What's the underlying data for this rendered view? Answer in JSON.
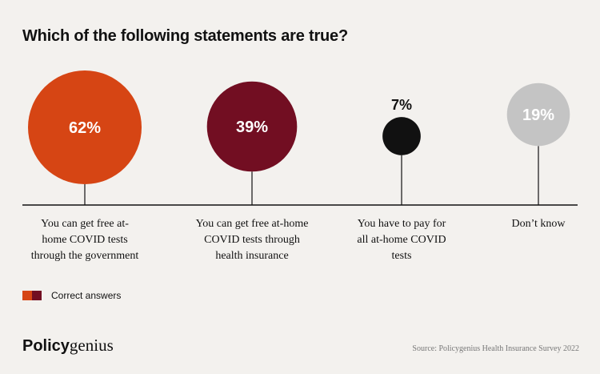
{
  "title": "Which of the following statements are true?",
  "legend": {
    "label": "Correct answers",
    "colors": [
      "#d64514",
      "#720e22"
    ]
  },
  "brand": {
    "bold": "Policy",
    "light": "genius"
  },
  "source": "Source: Policygenius Health Insurance Survey 2022",
  "chart_data": {
    "type": "bubble",
    "unit": "%",
    "categories": [
      "You can get free at-home COVID tests through the government",
      "You can get free at-home COVID tests through health insurance",
      "You have to pay for all at-home COVID tests",
      "Don't know"
    ],
    "category_lines": [
      [
        "You can get free at-",
        "home COVID tests",
        "through the government"
      ],
      [
        "You can get free at-home",
        "COVID tests through",
        "health insurance"
      ],
      [
        "You have to pay for",
        "all at-home COVID",
        "tests"
      ],
      [
        "Don’t know"
      ]
    ],
    "values": [
      62,
      39,
      7,
      19
    ],
    "value_labels": [
      "62%",
      "39%",
      "7%",
      "19%"
    ],
    "colors": [
      "#d64514",
      "#720e22",
      "#111111",
      "#c4c4c4"
    ],
    "correct": [
      true,
      true,
      false,
      false
    ]
  }
}
